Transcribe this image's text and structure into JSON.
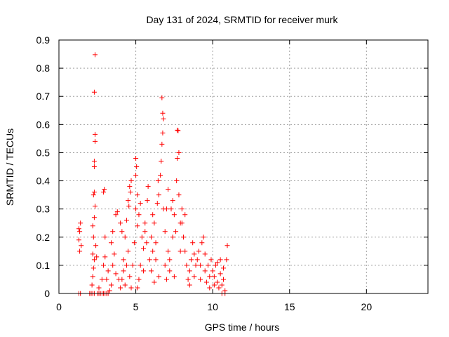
{
  "chart_data": {
    "type": "scatter",
    "title": "Day 131 of 2024, SRMTID for receiver murk",
    "xlabel": "GPS time / hours",
    "ylabel": "SRMTID / TECUs",
    "xlim": [
      0,
      24
    ],
    "ylim": [
      0,
      0.9
    ],
    "x_ticks": [
      0,
      5,
      10,
      15,
      20
    ],
    "y_ticks": [
      0,
      0.1,
      0.2,
      0.3,
      0.4,
      0.5,
      0.6,
      0.7,
      0.8,
      0.9
    ],
    "x_tick_labels": [
      "0",
      "5",
      "10",
      "15",
      "20"
    ],
    "y_tick_labels": [
      "0",
      "0.1",
      "0.2",
      "0.3",
      "0.4",
      "0.5",
      "0.6",
      "0.7",
      "0.8",
      "0.9"
    ],
    "grid": true,
    "marker": "plus",
    "series_color": "#ff0000",
    "points": [
      [
        1.3,
        0.0
      ],
      [
        1.4,
        0.0
      ],
      [
        1.35,
        0.15
      ],
      [
        1.3,
        0.19
      ],
      [
        1.35,
        0.22
      ],
      [
        1.4,
        0.25
      ],
      [
        1.3,
        0.23
      ],
      [
        1.45,
        0.17
      ],
      [
        2.0,
        0.0
      ],
      [
        2.1,
        0.0
      ],
      [
        2.2,
        0.0
      ],
      [
        2.3,
        0.0
      ],
      [
        2.15,
        0.03
      ],
      [
        2.2,
        0.06
      ],
      [
        2.25,
        0.09
      ],
      [
        2.3,
        0.12
      ],
      [
        2.2,
        0.14
      ],
      [
        2.25,
        0.2
      ],
      [
        2.2,
        0.24
      ],
      [
        2.3,
        0.27
      ],
      [
        2.35,
        0.31
      ],
      [
        2.25,
        0.35
      ],
      [
        2.3,
        0.36
      ],
      [
        2.3,
        0.45
      ],
      [
        2.3,
        0.47
      ],
      [
        2.35,
        0.54
      ],
      [
        2.35,
        0.565
      ],
      [
        2.3,
        0.715
      ],
      [
        2.35,
        0.848
      ],
      [
        2.4,
        0.17
      ],
      [
        2.45,
        0.13
      ],
      [
        2.5,
        0.0
      ],
      [
        2.6,
        0.0
      ],
      [
        2.7,
        0.0
      ],
      [
        2.8,
        0.0
      ],
      [
        2.9,
        0.0
      ],
      [
        3.0,
        0.0
      ],
      [
        3.1,
        0.0
      ],
      [
        3.2,
        0.0
      ],
      [
        2.6,
        0.02
      ],
      [
        2.8,
        0.05
      ],
      [
        2.9,
        0.1
      ],
      [
        3.0,
        0.13
      ],
      [
        2.9,
        0.36
      ],
      [
        2.95,
        0.37
      ],
      [
        3.0,
        0.2
      ],
      [
        3.1,
        0.05
      ],
      [
        3.2,
        0.08
      ],
      [
        3.3,
        0.01
      ],
      [
        3.4,
        0.03
      ],
      [
        3.5,
        0.1
      ],
      [
        3.6,
        0.14
      ],
      [
        3.7,
        0.28
      ],
      [
        3.8,
        0.29
      ],
      [
        3.5,
        0.22
      ],
      [
        3.4,
        0.18
      ],
      [
        3.9,
        0.05
      ],
      [
        3.7,
        0.07
      ],
      [
        4.0,
        0.02
      ],
      [
        4.1,
        0.05
      ],
      [
        4.2,
        0.12
      ],
      [
        4.3,
        0.2
      ],
      [
        4.4,
        0.26
      ],
      [
        4.5,
        0.33
      ],
      [
        4.6,
        0.38
      ],
      [
        4.65,
        0.36
      ],
      [
        4.7,
        0.4
      ],
      [
        4.55,
        0.31
      ],
      [
        4.4,
        0.1
      ],
      [
        4.3,
        0.03
      ],
      [
        4.2,
        0.08
      ],
      [
        4.1,
        0.22
      ],
      [
        4.0,
        0.25
      ],
      [
        4.5,
        0.15
      ],
      [
        4.6,
        0.06
      ],
      [
        4.7,
        0.02
      ],
      [
        4.8,
        0.1
      ],
      [
        4.9,
        0.18
      ],
      [
        5.0,
        0.42
      ],
      [
        5.05,
        0.45
      ],
      [
        5.0,
        0.48
      ],
      [
        5.1,
        0.35
      ],
      [
        5.0,
        0.3
      ],
      [
        5.1,
        0.24
      ],
      [
        5.2,
        0.28
      ],
      [
        5.3,
        0.32
      ],
      [
        5.4,
        0.2
      ],
      [
        5.5,
        0.16
      ],
      [
        5.3,
        0.1
      ],
      [
        5.2,
        0.05
      ],
      [
        5.1,
        0.02
      ],
      [
        5.6,
        0.22
      ],
      [
        5.7,
        0.18
      ],
      [
        5.8,
        0.38
      ],
      [
        5.75,
        0.33
      ],
      [
        5.9,
        0.12
      ],
      [
        5.6,
        0.25
      ],
      [
        5.5,
        0.08
      ],
      [
        6.0,
        0.2
      ],
      [
        6.1,
        0.15
      ],
      [
        6.2,
        0.25
      ],
      [
        6.3,
        0.12
      ],
      [
        6.4,
        0.32
      ],
      [
        6.5,
        0.35
      ],
      [
        6.45,
        0.4
      ],
      [
        6.6,
        0.42
      ],
      [
        6.65,
        0.47
      ],
      [
        6.7,
        0.53
      ],
      [
        6.75,
        0.57
      ],
      [
        6.8,
        0.62
      ],
      [
        6.75,
        0.64
      ],
      [
        6.7,
        0.695
      ],
      [
        6.8,
        0.3
      ],
      [
        6.9,
        0.22
      ],
      [
        6.0,
        0.08
      ],
      [
        6.2,
        0.04
      ],
      [
        6.5,
        0.06
      ],
      [
        6.9,
        0.1
      ],
      [
        6.3,
        0.18
      ],
      [
        6.1,
        0.28
      ],
      [
        7.0,
        0.3
      ],
      [
        7.1,
        0.15
      ],
      [
        7.2,
        0.08
      ],
      [
        7.3,
        0.3
      ],
      [
        7.4,
        0.33
      ],
      [
        7.5,
        0.28
      ],
      [
        7.6,
        0.22
      ],
      [
        7.7,
        0.48
      ],
      [
        7.8,
        0.5
      ],
      [
        7.75,
        0.578
      ],
      [
        7.7,
        0.58
      ],
      [
        7.65,
        0.4
      ],
      [
        7.8,
        0.35
      ],
      [
        7.9,
        0.25
      ],
      [
        7.0,
        0.05
      ],
      [
        7.2,
        0.12
      ],
      [
        7.5,
        0.06
      ],
      [
        7.9,
        0.15
      ],
      [
        7.1,
        0.37
      ],
      [
        7.4,
        0.2
      ],
      [
        8.0,
        0.25
      ],
      [
        8.1,
        0.2
      ],
      [
        8.2,
        0.15
      ],
      [
        8.3,
        0.1
      ],
      [
        8.4,
        0.05
      ],
      [
        8.5,
        0.08
      ],
      [
        8.6,
        0.12
      ],
      [
        8.7,
        0.18
      ],
      [
        8.8,
        0.14
      ],
      [
        8.9,
        0.1
      ],
      [
        8.2,
        0.28
      ],
      [
        8.5,
        0.03
      ],
      [
        8.8,
        0.06
      ],
      [
        8.0,
        0.3
      ],
      [
        9.0,
        0.12
      ],
      [
        9.1,
        0.15
      ],
      [
        9.2,
        0.1
      ],
      [
        9.3,
        0.18
      ],
      [
        9.4,
        0.2
      ],
      [
        9.5,
        0.08
      ],
      [
        9.6,
        0.04
      ],
      [
        9.7,
        0.1
      ],
      [
        9.8,
        0.06
      ],
      [
        9.9,
        0.12
      ],
      [
        9.2,
        0.05
      ],
      [
        9.5,
        0.14
      ],
      [
        9.8,
        0.02
      ],
      [
        10.0,
        0.08
      ],
      [
        10.1,
        0.06
      ],
      [
        10.2,
        0.1
      ],
      [
        10.3,
        0.04
      ],
      [
        10.4,
        0.02
      ],
      [
        10.5,
        0.07
      ],
      [
        10.6,
        0.03
      ],
      [
        10.7,
        0.05
      ],
      [
        10.8,
        0.01
      ],
      [
        10.9,
        0.12
      ],
      [
        10.95,
        0.17
      ],
      [
        10.5,
        0.12
      ],
      [
        10.6,
        0.0
      ],
      [
        10.8,
        0.0
      ],
      [
        10.7,
        0.09
      ],
      [
        10.3,
        0.11
      ],
      [
        10.1,
        0.03
      ]
    ]
  }
}
